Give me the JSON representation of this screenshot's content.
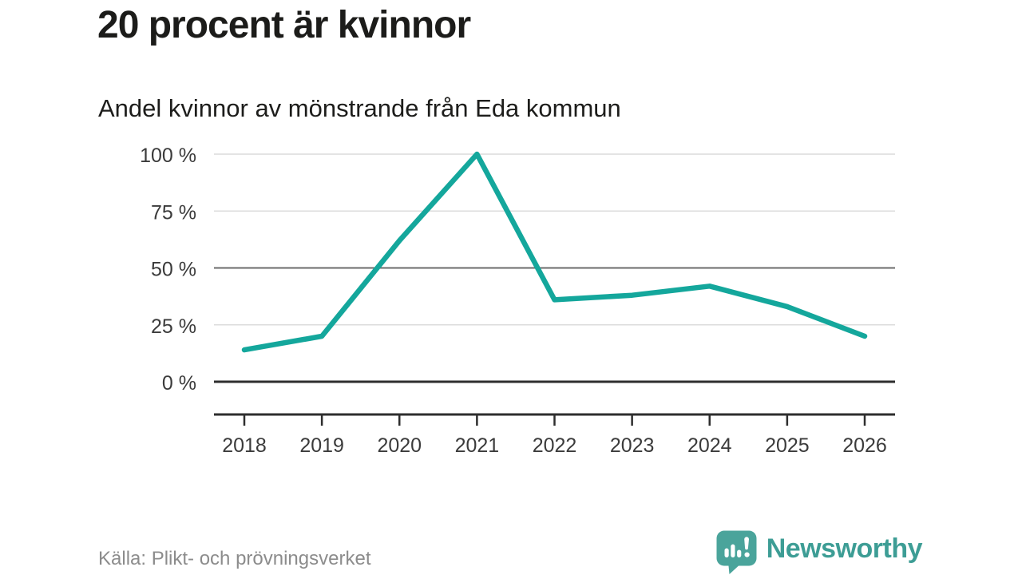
{
  "header": {
    "title": "20 procent är kvinnor",
    "subtitle": "Andel kvinnor av mönstrande från Eda kommun"
  },
  "footer": {
    "source": "Källa: Plikt- och prövningsverket",
    "brand_name": "Newsworthy",
    "brand_icon": "speech-bubble-bar-chart-icon"
  },
  "colors": {
    "line": "#14a79c",
    "grid_light": "#dcdcdc",
    "grid_mid": "#6b6b6b",
    "grid_dark": "#2e2e2e",
    "axis": "#2e2e2e",
    "tick_text": "#3b3b3b",
    "title_text": "#1c1c1a",
    "source_text": "#8c8c8c",
    "brand_teal": "#3d9d95",
    "brand_icon_teal": "#4aa49b"
  },
  "chart_data": {
    "type": "line",
    "title": "20 procent är kvinnor",
    "subtitle": "Andel kvinnor av mönstrande från Eda kommun",
    "categories": [
      "2018",
      "2019",
      "2020",
      "2021",
      "2022",
      "2023",
      "2024",
      "2025",
      "2026"
    ],
    "series": [
      {
        "name": "Andel kvinnor av mönstrande, Eda kommun",
        "values": [
          14,
          20,
          62,
          100,
          36,
          38,
          42,
          33,
          20
        ]
      }
    ],
    "unit": "%",
    "xlabel": "",
    "ylabel": "",
    "ylim": [
      0,
      100
    ],
    "yticks": [
      0,
      25,
      50,
      75,
      100
    ],
    "ytick_labels": [
      "0 %",
      "25 %",
      "50 %",
      "75 %",
      "100 %"
    ],
    "emphasized_gridlines": [
      0,
      50
    ],
    "grid": "horizontal",
    "legend": "none",
    "source": "Källa: Plikt- och prövningsverket"
  }
}
